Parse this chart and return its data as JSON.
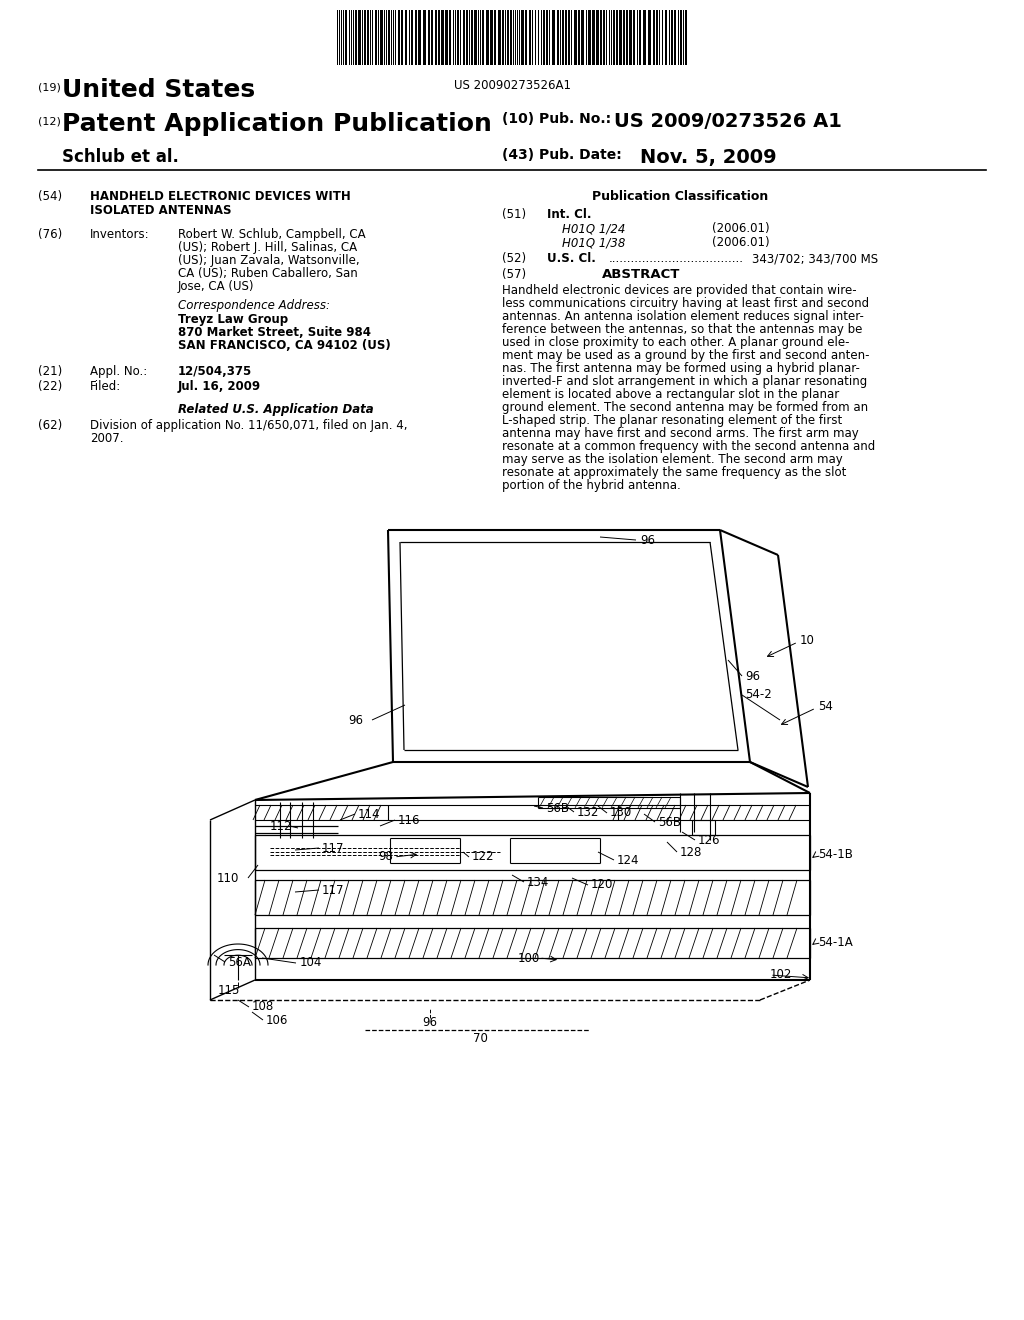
{
  "background_color": "#ffffff",
  "barcode_text": "US 20090273526A1",
  "title_19": "(19)",
  "title_19_text": "United States",
  "title_12": "(12)",
  "title_12_text": "Patent Application Publication",
  "title_10": "(10) Pub. No.:",
  "pub_no": "US 2009/0273526 A1",
  "author_line": "Schlub et al.",
  "title_43": "(43) Pub. Date:",
  "pub_date": "Nov. 5, 2009",
  "field_54_label": "(54)",
  "field_54_title_line1": "HANDHELD ELECTRONIC DEVICES WITH",
  "field_54_title_line2": "ISOLATED ANTENNAS",
  "field_76_label": "(76)",
  "field_76_title": "Inventors:",
  "inv_line1": "Robert W. Schlub, Campbell, CA",
  "inv_line2": "(US); Robert J. Hill, Salinas, CA",
  "inv_line3": "(US); Juan Zavala, Watsonville,",
  "inv_line4": "CA (US); Ruben Caballero, San",
  "inv_line5": "Jose, CA (US)",
  "correspondence_label": "Correspondence Address:",
  "correspondence_line1": "Treyz Law Group",
  "correspondence_line2": "870 Market Street, Suite 984",
  "correspondence_line3": "SAN FRANCISCO, CA 94102 (US)",
  "field_21_label": "(21)",
  "field_21_title": "Appl. No.:",
  "field_21_value": "12/504,375",
  "field_22_label": "(22)",
  "field_22_title": "Filed:",
  "field_22_value": "Jul. 16, 2009",
  "related_title": "Related U.S. Application Data",
  "field_62_label": "(62)",
  "field_62_line1": "Division of application No. 11/650,071, filed on Jan. 4,",
  "field_62_line2": "2007.",
  "pub_class_title": "Publication Classification",
  "field_51_label": "(51)",
  "field_51_title": "Int. Cl.",
  "field_51_class1": "H01Q 1/24",
  "field_51_year1": "(2006.01)",
  "field_51_class2": "H01Q 1/38",
  "field_51_year2": "(2006.01)",
  "field_52_label": "(52)",
  "field_52_title": "U.S. Cl.",
  "field_52_dots": "....................................",
  "field_52_value": "343/702; 343/700 MS",
  "field_57_label": "(57)",
  "field_57_title": "ABSTRACT",
  "abstract_lines": [
    "Handheld electronic devices are provided that contain wire-",
    "less communications circuitry having at least first and second",
    "antennas. An antenna isolation element reduces signal inter-",
    "ference between the antennas, so that the antennas may be",
    "used in close proximity to each other. A planar ground ele-",
    "ment may be used as a ground by the first and second anten-",
    "nas. The first antenna may be formed using a hybrid planar-",
    "inverted-F and slot arrangement in which a planar resonating",
    "element is located above a rectangular slot in the planar",
    "ground element. The second antenna may be formed from an",
    "L-shaped strip. The planar resonating element of the first",
    "antenna may have first and second arms. The first arm may",
    "resonate at a common frequency with the second antenna and",
    "may serve as the isolation element. The second arm may",
    "resonate at approximately the same frequency as the slot",
    "portion of the hybrid antenna."
  ]
}
